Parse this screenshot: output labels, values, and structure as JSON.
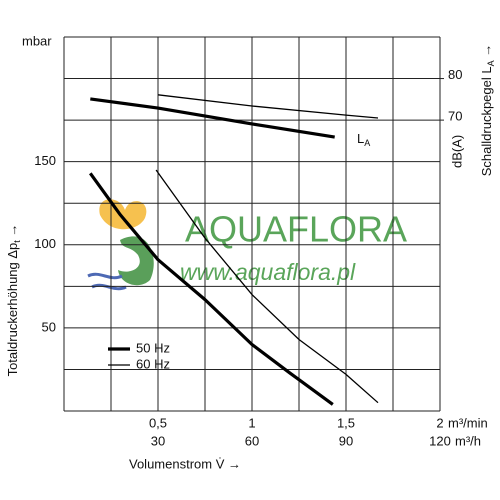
{
  "chart_data": {
    "type": "line",
    "y_unit": "mbar",
    "y2_unit": "dB(A)",
    "x_unit": "m³/min",
    "x2_unit": "m³/h",
    "x_label": "Volumenstrom V̇ →",
    "y_label": {
      "text": "Totaldruckerhöhung Δp",
      "sub": "t",
      "arrow": " →"
    },
    "y2_label": {
      "text": "Schalldruckpegel L",
      "sub": "A",
      "arrow": " →"
    },
    "xlim": [
      0,
      2
    ],
    "xticks": [
      {
        "value": 0.5,
        "label": "0,5"
      },
      1,
      {
        "value": 1.5,
        "label": "1,5"
      },
      2
    ],
    "xminor": [
      0.25,
      0.75,
      1.25,
      1.75
    ],
    "x2lim": [
      0,
      120
    ],
    "x2ticks": [
      30,
      60,
      90,
      120
    ],
    "ylim": [
      0,
      225
    ],
    "yticks": [
      50,
      100,
      150
    ],
    "yminor": [
      25,
      75,
      125,
      175,
      200
    ],
    "y2lim": [
      0,
      90
    ],
    "y2ticks": [
      70,
      80
    ],
    "grid": true,
    "legend": "lower left",
    "series": [
      {
        "name": "50 Hz",
        "color": "#000000",
        "x": [
          0.14,
          0.3,
          0.5,
          0.75,
          1.0,
          1.2,
          1.43
        ],
        "values": [
          143,
          118,
          91,
          67,
          40,
          23,
          4
        ]
      },
      {
        "name": "60 Hz",
        "color": "#000000",
        "x": [
          0.49,
          0.75,
          1.0,
          1.25,
          1.5,
          1.67
        ],
        "values": [
          145,
          104,
          70,
          43,
          22,
          5
        ]
      }
    ],
    "la_curves": [
      {
        "color": "#000000",
        "axis": "y2",
        "x": [
          0.14,
          0.5,
          1.0,
          1.44
        ],
        "values": [
          75.1,
          72.9,
          69.1,
          65.9
        ]
      },
      {
        "color": "#000000",
        "axis": "y2",
        "x": [
          0.5,
          1.0,
          1.5,
          1.67
        ],
        "values": [
          76.1,
          73.4,
          71.2,
          70.5
        ]
      }
    ],
    "la_label": {
      "text": "L",
      "sub": "A"
    },
    "watermark": {
      "name": "AQUAFLORA",
      "url": "www.aquaflora.pl"
    }
  }
}
